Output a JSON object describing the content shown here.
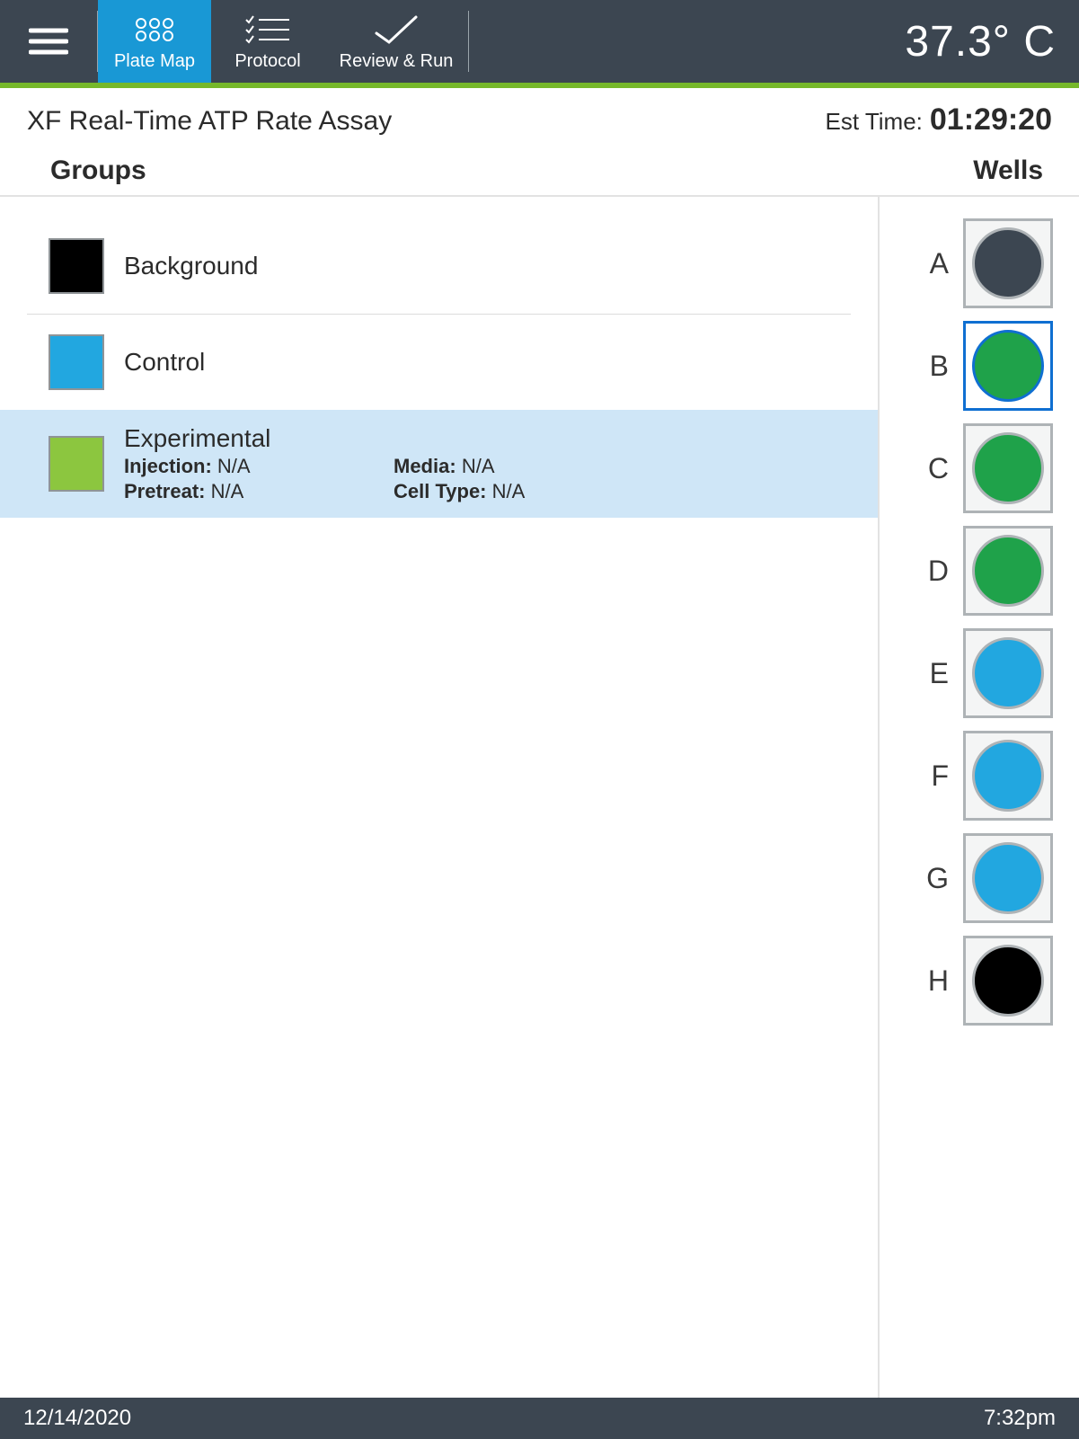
{
  "colors": {
    "topbar_bg": "#3c4651",
    "tab_active_bg": "#1998d5",
    "accent": "#76b82a",
    "divider": "#e2e2e2",
    "swatch_border": "#8f9497",
    "well_box_bg": "#f4f5f5",
    "well_border": "#aeb3b6",
    "well_selected_border": "#0f6fd1",
    "selected_row_bg": "#cfe6f7",
    "text": "#2b2b2b",
    "statusbar_bg": "#3c4651"
  },
  "topbar": {
    "tabs": {
      "platemap": "Plate Map",
      "protocol": "Protocol",
      "review": "Review & Run"
    },
    "active_tab": "platemap",
    "temperature": "37.3° C"
  },
  "title": {
    "assay_name": "XF Real-Time ATP Rate Assay",
    "est_label": "Est Time:",
    "est_time": "01:29:20"
  },
  "sections": {
    "groups_heading": "Groups",
    "wells_heading": "Wells"
  },
  "groups": [
    {
      "label": "Background",
      "swatch_color": "#000000",
      "selected": false
    },
    {
      "label": "Control",
      "swatch_color": "#22a7e0",
      "selected": false
    },
    {
      "label": "Experimental",
      "swatch_color": "#8cc63f",
      "selected": true,
      "details": {
        "injection_label": "Injection:",
        "injection_value": "N/A",
        "media_label": "Media:",
        "media_value": "N/A",
        "pretreat_label": "Pretreat:",
        "pretreat_value": "N/A",
        "celltype_label": "Cell Type:",
        "celltype_value": "N/A"
      }
    }
  ],
  "wells": [
    {
      "letter": "A",
      "fill": "#3c4651",
      "selected": false
    },
    {
      "letter": "B",
      "fill": "#1fa24a",
      "selected": true
    },
    {
      "letter": "C",
      "fill": "#1fa24a",
      "selected": false
    },
    {
      "letter": "D",
      "fill": "#1fa24a",
      "selected": false
    },
    {
      "letter": "E",
      "fill": "#22a7e0",
      "selected": false
    },
    {
      "letter": "F",
      "fill": "#22a7e0",
      "selected": false
    },
    {
      "letter": "G",
      "fill": "#22a7e0",
      "selected": false
    },
    {
      "letter": "H",
      "fill": "#000000",
      "selected": false
    }
  ],
  "statusbar": {
    "date": "12/14/2020",
    "time": "7:32pm"
  }
}
